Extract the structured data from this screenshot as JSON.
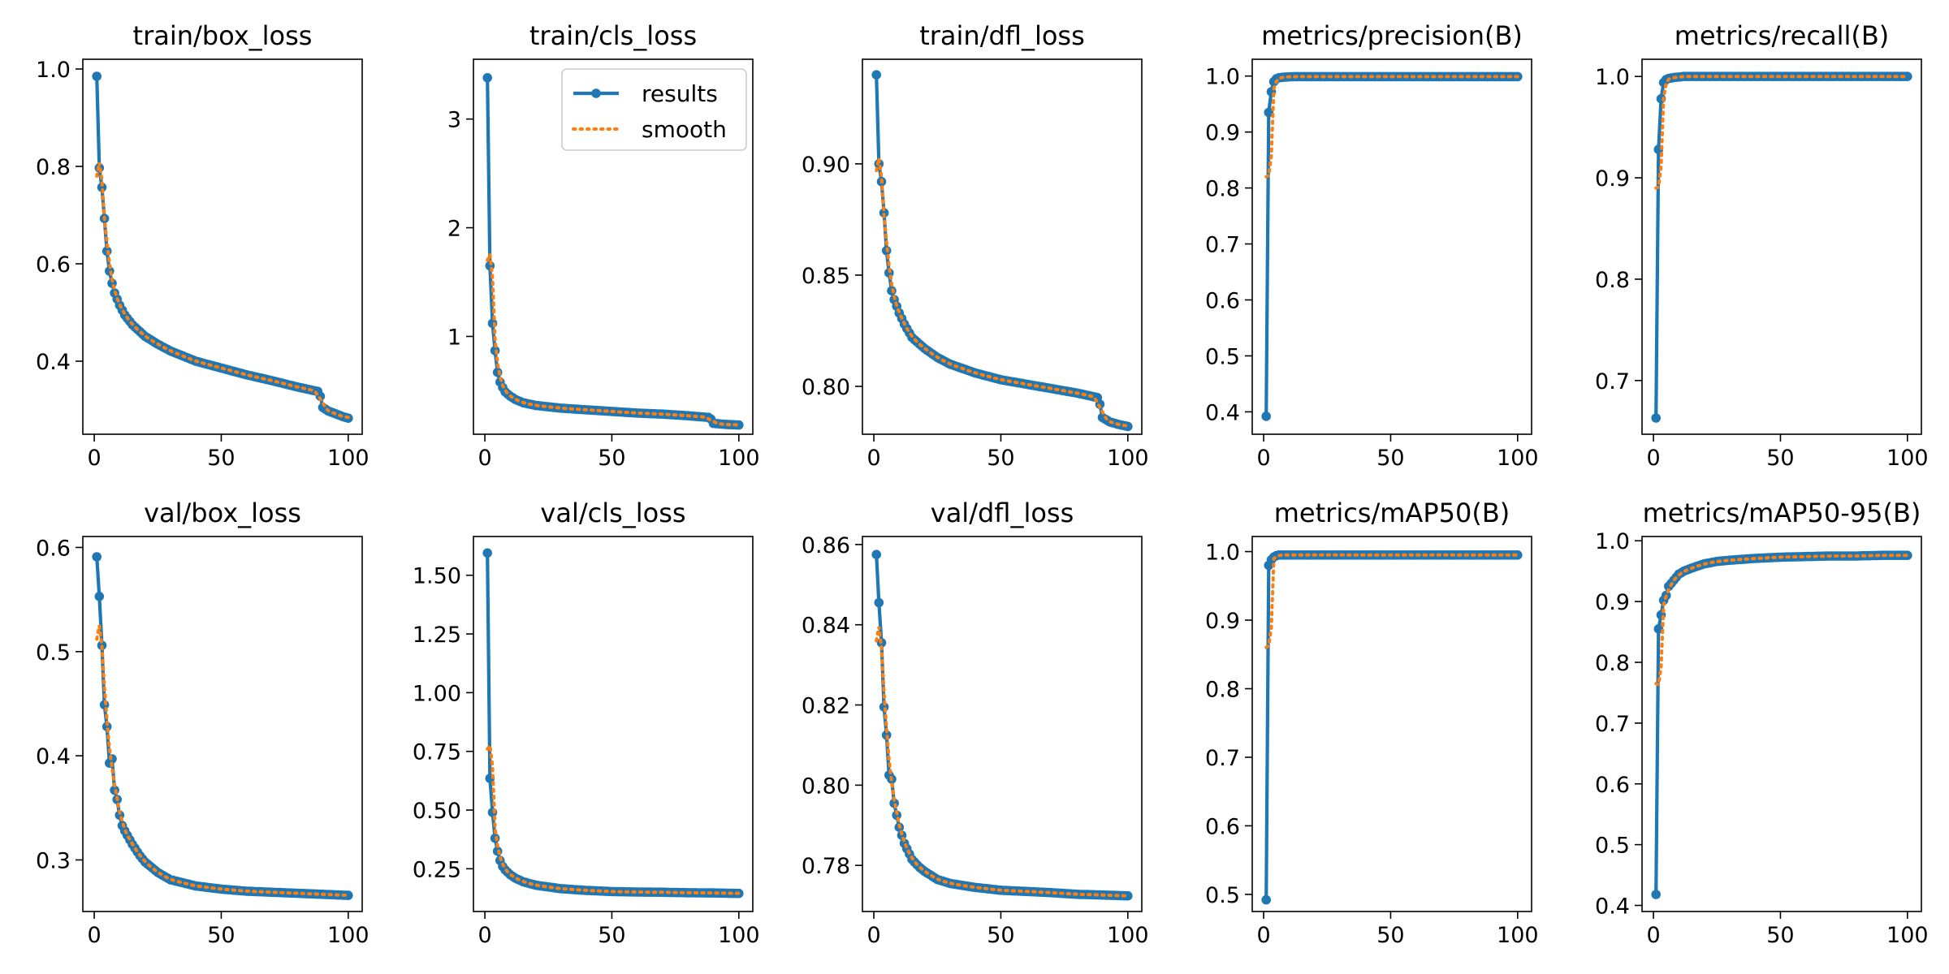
{
  "figure": {
    "background": "#ffffff",
    "results_color": "#1f77b4",
    "smooth_color": "#ff7f0e"
  },
  "legend": {
    "entries": [
      "results",
      "smooth"
    ],
    "placement": "upper-right of train/cls_loss"
  },
  "chart_data": [
    {
      "type": "line",
      "title": "train/box_loss",
      "xlabel": "",
      "ylabel": "",
      "xlim": [
        -4.5,
        105.5
      ],
      "ylim": [
        0.25,
        1.02
      ],
      "xticks": [
        0,
        50,
        100
      ],
      "xtick_labels": [
        "0",
        "50",
        "100"
      ],
      "yticks": [
        0.4,
        0.6,
        0.8,
        1.0
      ],
      "ytick_labels": [
        "0.4",
        "0.6",
        "0.8",
        "1.0"
      ],
      "grid": false,
      "keypoints": [
        [
          1,
          0.985
        ],
        [
          2,
          0.797
        ],
        [
          3,
          0.757
        ],
        [
          4,
          0.693
        ],
        [
          5,
          0.626
        ],
        [
          6,
          0.585
        ],
        [
          7,
          0.56
        ],
        [
          8,
          0.54
        ],
        [
          10,
          0.515
        ],
        [
          12,
          0.495
        ],
        [
          15,
          0.475
        ],
        [
          20,
          0.451
        ],
        [
          25,
          0.435
        ],
        [
          30,
          0.421
        ],
        [
          40,
          0.4
        ],
        [
          50,
          0.386
        ],
        [
          60,
          0.372
        ],
        [
          70,
          0.36
        ],
        [
          80,
          0.347
        ],
        [
          88,
          0.338
        ],
        [
          89,
          0.328
        ],
        [
          90,
          0.305
        ],
        [
          92,
          0.298
        ],
        [
          95,
          0.292
        ],
        [
          98,
          0.286
        ],
        [
          100,
          0.283
        ]
      ],
      "smooth_first": 0.78
    },
    {
      "type": "line",
      "title": "train/cls_loss",
      "xlabel": "",
      "ylabel": "",
      "xlim": [
        -4.5,
        105.5
      ],
      "ylim": [
        0.1,
        3.55
      ],
      "xticks": [
        0,
        50,
        100
      ],
      "xtick_labels": [
        "0",
        "50",
        "100"
      ],
      "yticks": [
        1,
        2,
        3
      ],
      "ytick_labels": [
        "1",
        "2",
        "3"
      ],
      "grid": false,
      "keypoints": [
        [
          1,
          3.38
        ],
        [
          2,
          1.65
        ],
        [
          3,
          1.12
        ],
        [
          4,
          0.87
        ],
        [
          5,
          0.67
        ],
        [
          6,
          0.58
        ],
        [
          7,
          0.53
        ],
        [
          8,
          0.49
        ],
        [
          10,
          0.45
        ],
        [
          12,
          0.42
        ],
        [
          15,
          0.39
        ],
        [
          20,
          0.365
        ],
        [
          30,
          0.34
        ],
        [
          40,
          0.325
        ],
        [
          50,
          0.31
        ],
        [
          60,
          0.295
        ],
        [
          70,
          0.285
        ],
        [
          80,
          0.27
        ],
        [
          88,
          0.255
        ],
        [
          89,
          0.24
        ],
        [
          90,
          0.2
        ],
        [
          95,
          0.19
        ],
        [
          100,
          0.185
        ]
      ],
      "smooth_first": 1.7
    },
    {
      "type": "line",
      "title": "train/dfl_loss",
      "xlabel": "",
      "ylabel": "",
      "xlim": [
        -4.5,
        105.5
      ],
      "ylim": [
        0.7785,
        0.947
      ],
      "xticks": [
        0,
        50,
        100
      ],
      "xtick_labels": [
        "0",
        "50",
        "100"
      ],
      "yticks": [
        0.8,
        0.85,
        0.9
      ],
      "ytick_labels": [
        "0.80",
        "0.85",
        "0.90"
      ],
      "grid": false,
      "keypoints": [
        [
          1,
          0.94
        ],
        [
          2,
          0.9
        ],
        [
          3,
          0.892
        ],
        [
          4,
          0.878
        ],
        [
          5,
          0.861
        ],
        [
          6,
          0.851
        ],
        [
          7,
          0.843
        ],
        [
          8,
          0.839
        ],
        [
          10,
          0.833
        ],
        [
          12,
          0.828
        ],
        [
          15,
          0.822
        ],
        [
          20,
          0.817
        ],
        [
          25,
          0.813
        ],
        [
          30,
          0.81
        ],
        [
          40,
          0.806
        ],
        [
          50,
          0.803
        ],
        [
          60,
          0.801
        ],
        [
          70,
          0.799
        ],
        [
          80,
          0.797
        ],
        [
          88,
          0.795
        ],
        [
          89,
          0.792
        ],
        [
          90,
          0.786
        ],
        [
          93,
          0.784
        ],
        [
          96,
          0.783
        ],
        [
          100,
          0.782
        ]
      ],
      "smooth_first": 0.897
    },
    {
      "type": "line",
      "title": "metrics/precision(B)",
      "xlabel": "",
      "ylabel": "",
      "xlim": [
        -4.5,
        105.5
      ],
      "ylim": [
        0.36,
        1.03
      ],
      "xticks": [
        0,
        50,
        100
      ],
      "xtick_labels": [
        "0",
        "50",
        "100"
      ],
      "yticks": [
        0.4,
        0.5,
        0.6,
        0.7,
        0.8,
        0.9,
        1.0
      ],
      "ytick_labels": [
        "0.4",
        "0.5",
        "0.6",
        "0.7",
        "0.8",
        "0.9",
        "1.0"
      ],
      "grid": false,
      "keypoints": [
        [
          1,
          0.392
        ],
        [
          2,
          0.935
        ],
        [
          3,
          0.972
        ],
        [
          4,
          0.99
        ],
        [
          5,
          0.995
        ],
        [
          6,
          0.997
        ],
        [
          8,
          0.998
        ],
        [
          12,
          0.999
        ],
        [
          20,
          0.999
        ],
        [
          100,
          0.999
        ]
      ],
      "smooth_first": 0.82
    },
    {
      "type": "line",
      "title": "metrics/recall(B)",
      "xlabel": "",
      "ylabel": "",
      "xlim": [
        -4.5,
        105.5
      ],
      "ylim": [
        0.647,
        1.017
      ],
      "xticks": [
        0,
        50,
        100
      ],
      "xtick_labels": [
        "0",
        "50",
        "100"
      ],
      "yticks": [
        0.7,
        0.8,
        0.9,
        1.0
      ],
      "ytick_labels": [
        "0.7",
        "0.8",
        "0.9",
        "1.0"
      ],
      "grid": false,
      "keypoints": [
        [
          1,
          0.663
        ],
        [
          2,
          0.928
        ],
        [
          3,
          0.978
        ],
        [
          4,
          0.994
        ],
        [
          5,
          0.997
        ],
        [
          6,
          0.998
        ],
        [
          8,
          0.999
        ],
        [
          12,
          1.0
        ],
        [
          100,
          1.0
        ]
      ],
      "smooth_first": 0.89
    },
    {
      "type": "line",
      "title": "val/box_loss",
      "xlabel": "",
      "ylabel": "",
      "xlim": [
        -4.5,
        105.5
      ],
      "ylim": [
        0.2505,
        0.6105
      ],
      "xticks": [
        0,
        50,
        100
      ],
      "xtick_labels": [
        "0",
        "50",
        "100"
      ],
      "yticks": [
        0.3,
        0.4,
        0.5,
        0.6
      ],
      "ytick_labels": [
        "0.3",
        "0.4",
        "0.5",
        "0.6"
      ],
      "grid": false,
      "keypoints": [
        [
          1,
          0.591
        ],
        [
          2,
          0.553
        ],
        [
          3,
          0.506
        ],
        [
          4,
          0.449
        ],
        [
          5,
          0.428
        ],
        [
          6,
          0.393
        ],
        [
          7,
          0.397
        ],
        [
          8,
          0.367
        ],
        [
          9,
          0.358
        ],
        [
          10,
          0.343
        ],
        [
          11,
          0.333
        ],
        [
          12,
          0.328
        ],
        [
          15,
          0.315
        ],
        [
          18,
          0.304
        ],
        [
          20,
          0.298
        ],
        [
          25,
          0.288
        ],
        [
          30,
          0.281
        ],
        [
          40,
          0.275
        ],
        [
          50,
          0.272
        ],
        [
          60,
          0.27
        ],
        [
          70,
          0.269
        ],
        [
          80,
          0.268
        ],
        [
          90,
          0.267
        ],
        [
          100,
          0.266
        ]
      ],
      "smooth_first": 0.512
    },
    {
      "type": "line",
      "title": "val/cls_loss",
      "xlabel": "",
      "ylabel": "",
      "xlim": [
        -4.5,
        105.5
      ],
      "ylim": [
        0.068,
        1.665
      ],
      "xticks": [
        0,
        50,
        100
      ],
      "xtick_labels": [
        "0",
        "50",
        "100"
      ],
      "yticks": [
        0.25,
        0.5,
        0.75,
        1.0,
        1.25,
        1.5
      ],
      "ytick_labels": [
        "0.25",
        "0.50",
        "0.75",
        "1.00",
        "1.25",
        "1.50"
      ],
      "grid": false,
      "keypoints": [
        [
          1,
          1.595
        ],
        [
          2,
          0.635
        ],
        [
          3,
          0.49
        ],
        [
          4,
          0.38
        ],
        [
          5,
          0.325
        ],
        [
          6,
          0.285
        ],
        [
          7,
          0.26
        ],
        [
          8,
          0.245
        ],
        [
          10,
          0.225
        ],
        [
          12,
          0.21
        ],
        [
          15,
          0.195
        ],
        [
          20,
          0.18
        ],
        [
          30,
          0.165
        ],
        [
          40,
          0.158
        ],
        [
          50,
          0.153
        ],
        [
          60,
          0.151
        ],
        [
          70,
          0.15
        ],
        [
          80,
          0.148
        ],
        [
          90,
          0.147
        ],
        [
          100,
          0.145
        ]
      ],
      "smooth_first": 0.76
    },
    {
      "type": "line",
      "title": "val/dfl_loss",
      "xlabel": "",
      "ylabel": "",
      "xlim": [
        -4.5,
        105.5
      ],
      "ylim": [
        0.7685,
        0.862
      ],
      "xticks": [
        0,
        50,
        100
      ],
      "xtick_labels": [
        "0",
        "50",
        "100"
      ],
      "yticks": [
        0.78,
        0.8,
        0.82,
        0.84,
        0.86
      ],
      "ytick_labels": [
        "0.78",
        "0.80",
        "0.82",
        "0.84",
        "0.86"
      ],
      "grid": false,
      "keypoints": [
        [
          1,
          0.8575
        ],
        [
          2,
          0.8455
        ],
        [
          3,
          0.8355
        ],
        [
          4,
          0.8195
        ],
        [
          5,
          0.8125
        ],
        [
          6,
          0.8025
        ],
        [
          7,
          0.8015
        ],
        [
          8,
          0.7955
        ],
        [
          9,
          0.7925
        ],
        [
          10,
          0.7895
        ],
        [
          12,
          0.7855
        ],
        [
          15,
          0.7815
        ],
        [
          18,
          0.7795
        ],
        [
          20,
          0.7785
        ],
        [
          25,
          0.7765
        ],
        [
          30,
          0.7755
        ],
        [
          40,
          0.7745
        ],
        [
          50,
          0.7738
        ],
        [
          60,
          0.7735
        ],
        [
          70,
          0.7732
        ],
        [
          80,
          0.7728
        ],
        [
          90,
          0.7726
        ],
        [
          100,
          0.7724
        ]
      ],
      "smooth_first": 0.836
    },
    {
      "type": "line",
      "title": "metrics/mAP50(B)",
      "xlabel": "",
      "ylabel": "",
      "xlim": [
        -4.5,
        105.5
      ],
      "ylim": [
        0.475,
        1.022
      ],
      "xticks": [
        0,
        50,
        100
      ],
      "xtick_labels": [
        "0",
        "50",
        "100"
      ],
      "yticks": [
        0.5,
        0.6,
        0.7,
        0.8,
        0.9,
        1.0
      ],
      "ytick_labels": [
        "0.5",
        "0.6",
        "0.7",
        "0.8",
        "0.9",
        "1.0"
      ],
      "grid": false,
      "keypoints": [
        [
          1,
          0.492
        ],
        [
          2,
          0.98
        ],
        [
          3,
          0.988
        ],
        [
          4,
          0.992
        ],
        [
          5,
          0.994
        ],
        [
          6,
          0.995
        ],
        [
          10,
          0.995
        ],
        [
          100,
          0.995
        ]
      ],
      "smooth_first": 0.86
    },
    {
      "type": "line",
      "title": "metrics/mAP50-95(B)",
      "xlabel": "",
      "ylabel": "",
      "xlim": [
        -4.5,
        105.5
      ],
      "ylim": [
        0.39,
        1.007
      ],
      "xticks": [
        0,
        50,
        100
      ],
      "xtick_labels": [
        "0",
        "50",
        "100"
      ],
      "yticks": [
        0.4,
        0.5,
        0.6,
        0.7,
        0.8,
        0.9,
        1.0
      ],
      "ytick_labels": [
        "0.4",
        "0.5",
        "0.6",
        "0.7",
        "0.8",
        "0.9",
        "1.0"
      ],
      "grid": false,
      "keypoints": [
        [
          1,
          0.418
        ],
        [
          2,
          0.855
        ],
        [
          3,
          0.878
        ],
        [
          4,
          0.902
        ],
        [
          5,
          0.91
        ],
        [
          6,
          0.925
        ],
        [
          7,
          0.93
        ],
        [
          8,
          0.935
        ],
        [
          10,
          0.945
        ],
        [
          12,
          0.95
        ],
        [
          15,
          0.955
        ],
        [
          20,
          0.962
        ],
        [
          25,
          0.966
        ],
        [
          30,
          0.968
        ],
        [
          40,
          0.971
        ],
        [
          50,
          0.973
        ],
        [
          60,
          0.974
        ],
        [
          70,
          0.975
        ],
        [
          80,
          0.975
        ],
        [
          90,
          0.976
        ],
        [
          100,
          0.976
        ]
      ],
      "smooth_first": 0.765
    }
  ]
}
